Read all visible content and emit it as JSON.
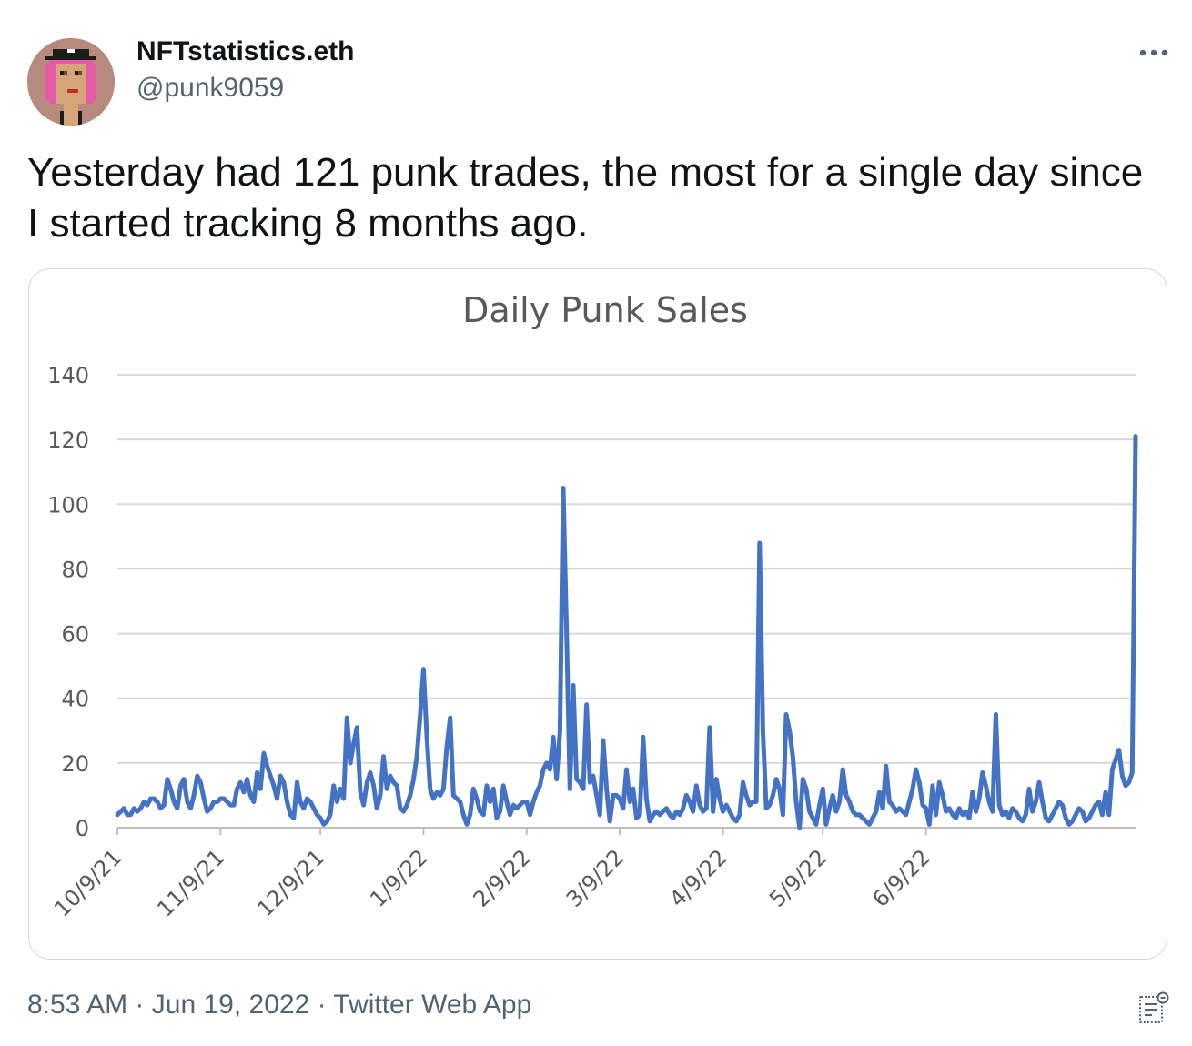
{
  "tweet": {
    "author_name": "NFTstatistics.eth",
    "author_handle": "@punk9059",
    "text": "Yesterday had 121 punk trades, the most for a single day since I started tracking 8 months ago.",
    "time": "8:53 AM",
    "separator": "·",
    "date": "Jun 19, 2022",
    "source": "Twitter Web App"
  },
  "icons": {
    "more": "more-dots-icon",
    "analytics": "analytics-icon"
  },
  "colors": {
    "line": "#4472c4",
    "grid": "#d9d9d9",
    "text_secondary": "#536471",
    "border": "#cfd9de"
  },
  "chart_data": {
    "type": "line",
    "title": "Daily Punk Sales",
    "xlabel": "",
    "ylabel": "",
    "ylim": [
      0,
      140
    ],
    "yticks": [
      0,
      20,
      40,
      60,
      80,
      100,
      120,
      140
    ],
    "xtick_labels": [
      "10/9/21",
      "11/9/21",
      "12/9/21",
      "1/9/22",
      "2/9/22",
      "3/9/22",
      "4/9/22",
      "5/9/22",
      "6/9/22"
    ],
    "x_start": "10/9/21",
    "x_end": "6/18/22",
    "grid": true,
    "legend": "none",
    "series": [
      {
        "values": [
          4,
          5,
          6,
          4,
          4,
          6,
          5,
          6,
          8,
          7,
          9,
          9,
          8,
          6,
          7,
          15,
          12,
          8,
          6,
          13,
          15,
          8,
          6,
          10,
          16,
          14,
          9,
          5,
          6,
          8,
          8,
          9,
          9,
          8,
          7,
          7,
          12,
          14,
          11,
          15,
          10,
          8,
          17,
          12,
          23,
          19,
          16,
          13,
          9,
          16,
          14,
          8,
          4,
          3,
          14,
          8,
          6,
          9,
          8,
          6,
          4,
          3,
          1,
          2,
          4,
          13,
          8,
          12,
          9,
          34,
          20,
          26,
          31,
          11,
          7,
          14,
          17,
          13,
          6,
          10,
          22,
          12,
          16,
          14,
          13,
          6,
          5,
          7,
          10,
          15,
          22,
          35,
          49,
          28,
          12,
          9,
          11,
          10,
          12,
          25,
          34,
          10,
          9,
          8,
          4,
          1,
          4,
          12,
          9,
          5,
          4,
          13,
          8,
          12,
          3,
          5,
          13,
          8,
          4,
          7,
          6,
          7,
          8,
          8,
          4,
          8,
          11,
          13,
          18,
          20,
          18,
          28,
          15,
          30,
          105,
          60,
          12,
          44,
          15,
          14,
          12,
          38,
          14,
          16,
          10,
          4,
          27,
          12,
          2,
          10,
          10,
          9,
          6,
          18,
          8,
          12,
          3,
          4,
          28,
          9,
          2,
          4,
          5,
          4,
          5,
          6,
          4,
          3,
          5,
          4,
          6,
          10,
          8,
          5,
          13,
          7,
          5,
          6,
          31,
          5,
          15,
          9,
          5,
          7,
          5,
          3,
          2,
          4,
          14,
          10,
          7,
          8,
          8,
          88,
          30,
          6,
          7,
          10,
          15,
          12,
          4,
          35,
          30,
          22,
          8,
          0,
          15,
          12,
          5,
          3,
          1,
          7,
          12,
          1,
          6,
          10,
          5,
          8,
          18,
          10,
          8,
          5,
          4,
          4,
          3,
          2,
          1,
          3,
          5,
          11,
          6,
          19,
          8,
          7,
          5,
          6,
          5,
          4,
          8,
          12,
          18,
          14,
          7,
          6,
          1,
          13,
          4,
          14,
          10,
          5,
          6,
          4,
          3,
          6,
          4,
          5,
          3,
          11,
          5,
          9,
          17,
          13,
          8,
          5,
          35,
          7,
          4,
          5,
          3,
          6,
          5,
          3,
          2,
          4,
          12,
          5,
          8,
          14,
          8,
          3,
          2,
          4,
          6,
          8,
          7,
          3,
          1,
          2,
          4,
          6,
          5,
          2,
          3,
          5,
          7,
          8,
          4,
          11,
          4,
          18,
          21,
          24,
          16,
          13,
          14,
          17,
          121
        ]
      }
    ]
  }
}
